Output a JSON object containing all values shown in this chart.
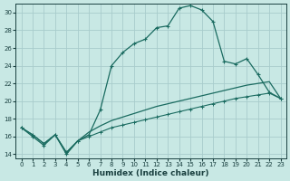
{
  "xlabel": "Humidex (Indice chaleur)",
  "xlim": [
    -0.5,
    23.5
  ],
  "ylim": [
    13.5,
    31.0
  ],
  "x_ticks": [
    0,
    1,
    2,
    3,
    4,
    5,
    6,
    7,
    8,
    9,
    10,
    11,
    12,
    13,
    14,
    15,
    16,
    17,
    18,
    19,
    20,
    21,
    22,
    23
  ],
  "y_ticks": [
    14,
    16,
    18,
    20,
    22,
    24,
    26,
    28,
    30
  ],
  "bg_color": "#c8e8e4",
  "grid_color": "#a8cccc",
  "line_color": "#1a6b60",
  "curve_main_x": [
    0,
    1,
    2,
    3,
    4,
    5,
    6,
    7,
    8,
    9,
    10,
    11,
    12,
    13,
    14,
    15,
    16,
    17,
    18,
    19,
    20,
    21,
    22,
    23
  ],
  "curve_main_y": [
    17.0,
    16.0,
    15.0,
    16.2,
    14.0,
    15.5,
    16.2,
    19.0,
    24.0,
    25.5,
    26.5,
    27.0,
    28.3,
    28.5,
    30.5,
    30.8,
    30.3,
    29.0,
    24.5,
    24.2,
    24.8,
    23.0,
    21.0,
    20.3
  ],
  "curve_smooth_x": [
    0,
    1,
    2,
    3,
    4,
    5,
    6,
    7,
    8,
    9,
    10,
    11,
    12,
    13,
    14,
    15,
    16,
    17,
    18,
    19,
    20,
    21,
    22,
    23
  ],
  "curve_smooth_y": [
    17.0,
    16.2,
    15.2,
    16.2,
    14.2,
    15.5,
    16.5,
    17.2,
    17.8,
    18.2,
    18.6,
    19.0,
    19.4,
    19.7,
    20.0,
    20.3,
    20.6,
    20.9,
    21.2,
    21.5,
    21.8,
    22.0,
    22.2,
    20.3
  ],
  "curve_linear_x": [
    0,
    1,
    2,
    3,
    4,
    5,
    6,
    7,
    8,
    9,
    10,
    11,
    12,
    13,
    14,
    15,
    16,
    17,
    18,
    19,
    20,
    21,
    22,
    23
  ],
  "curve_linear_y": [
    17.0,
    16.2,
    15.2,
    16.2,
    14.2,
    15.5,
    16.0,
    16.5,
    17.0,
    17.3,
    17.6,
    17.9,
    18.2,
    18.5,
    18.8,
    19.1,
    19.4,
    19.7,
    20.0,
    20.3,
    20.5,
    20.7,
    20.9,
    20.3
  ]
}
